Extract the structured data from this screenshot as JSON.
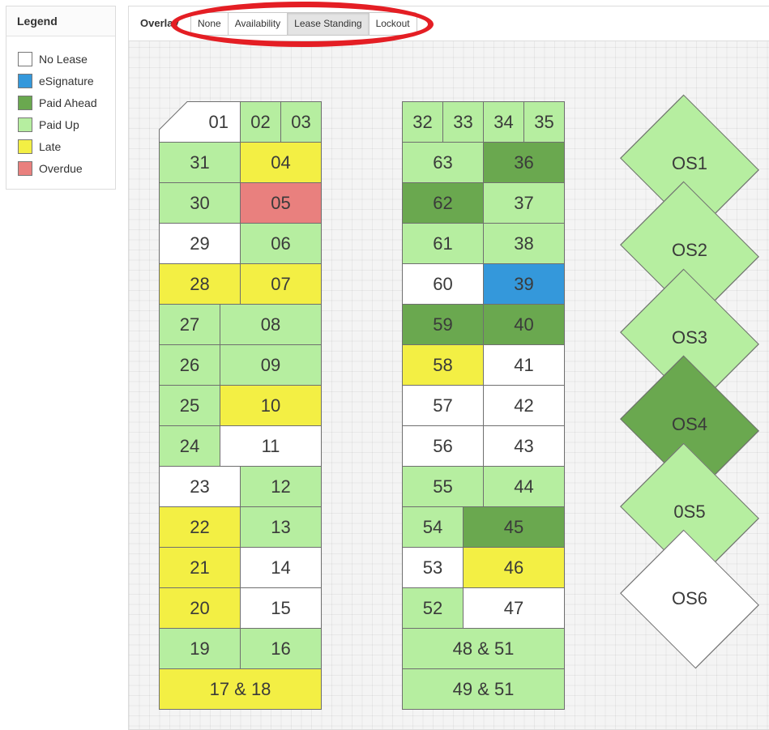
{
  "legend": {
    "title": "Legend",
    "items": [
      {
        "label": "No Lease",
        "color": "#ffffff"
      },
      {
        "label": "eSignature",
        "color": "#3498db"
      },
      {
        "label": "Paid Ahead",
        "color": "#6aa84f"
      },
      {
        "label": "Paid Up",
        "color": "#b6eea0"
      },
      {
        "label": "Late",
        "color": "#f3ef44"
      },
      {
        "label": "Overdue",
        "color": "#e9807e"
      }
    ]
  },
  "toolbar": {
    "overlay_label": "Overlay",
    "buttons": {
      "none": "None",
      "availability": "Availability",
      "lease_standing": "Lease Standing",
      "lockout": "Lockout"
    },
    "active": "Lease Standing"
  },
  "units": {
    "u01": {
      "label": "01",
      "status": "No Lease"
    },
    "u02": {
      "label": "02",
      "status": "Paid Up"
    },
    "u03": {
      "label": "03",
      "status": "Paid Up"
    },
    "u04": {
      "label": "04",
      "status": "Late"
    },
    "u05": {
      "label": "05",
      "status": "Overdue"
    },
    "u06": {
      "label": "06",
      "status": "Paid Up"
    },
    "u07": {
      "label": "07",
      "status": "Late"
    },
    "u08": {
      "label": "08",
      "status": "Paid Up"
    },
    "u09": {
      "label": "09",
      "status": "Paid Up"
    },
    "u10": {
      "label": "10",
      "status": "Late"
    },
    "u11": {
      "label": "11",
      "status": "No Lease"
    },
    "u12": {
      "label": "12",
      "status": "Paid Up"
    },
    "u13": {
      "label": "13",
      "status": "Paid Up"
    },
    "u14": {
      "label": "14",
      "status": "No Lease"
    },
    "u15": {
      "label": "15",
      "status": "No Lease"
    },
    "u16": {
      "label": "16",
      "status": "Paid Up"
    },
    "u1718": {
      "label": "17 & 18",
      "status": "Late"
    },
    "u19": {
      "label": "19",
      "status": "Paid Up"
    },
    "u20": {
      "label": "20",
      "status": "Late"
    },
    "u21": {
      "label": "21",
      "status": "Late"
    },
    "u22": {
      "label": "22",
      "status": "Late"
    },
    "u23": {
      "label": "23",
      "status": "No Lease"
    },
    "u24": {
      "label": "24",
      "status": "Paid Up"
    },
    "u25": {
      "label": "25",
      "status": "Paid Up"
    },
    "u26": {
      "label": "26",
      "status": "Paid Up"
    },
    "u27": {
      "label": "27",
      "status": "Paid Up"
    },
    "u28": {
      "label": "28",
      "status": "Late"
    },
    "u29": {
      "label": "29",
      "status": "No Lease"
    },
    "u30": {
      "label": "30",
      "status": "Paid Up"
    },
    "u31": {
      "label": "31",
      "status": "Paid Up"
    },
    "u32": {
      "label": "32",
      "status": "Paid Up"
    },
    "u33": {
      "label": "33",
      "status": "Paid Up"
    },
    "u34": {
      "label": "34",
      "status": "Paid Up"
    },
    "u35": {
      "label": "35",
      "status": "Paid Up"
    },
    "u36": {
      "label": "36",
      "status": "Paid Ahead"
    },
    "u37": {
      "label": "37",
      "status": "Paid Up"
    },
    "u38": {
      "label": "38",
      "status": "Paid Up"
    },
    "u39": {
      "label": "39",
      "status": "eSignature"
    },
    "u40": {
      "label": "40",
      "status": "Paid Ahead"
    },
    "u41": {
      "label": "41",
      "status": "No Lease"
    },
    "u42": {
      "label": "42",
      "status": "No Lease"
    },
    "u43": {
      "label": "43",
      "status": "No Lease"
    },
    "u44": {
      "label": "44",
      "status": "Paid Up"
    },
    "u45": {
      "label": "45",
      "status": "Paid Ahead"
    },
    "u46": {
      "label": "46",
      "status": "Late"
    },
    "u47": {
      "label": "47",
      "status": "No Lease"
    },
    "u4851": {
      "label": "48 & 51",
      "status": "Paid Up"
    },
    "u4951": {
      "label": "49 & 51",
      "status": "Paid Up"
    },
    "u52": {
      "label": "52",
      "status": "Paid Up"
    },
    "u53": {
      "label": "53",
      "status": "No Lease"
    },
    "u54": {
      "label": "54",
      "status": "Paid Up"
    },
    "u55": {
      "label": "55",
      "status": "Paid Up"
    },
    "u56": {
      "label": "56",
      "status": "No Lease"
    },
    "u57": {
      "label": "57",
      "status": "No Lease"
    },
    "u58": {
      "label": "58",
      "status": "Late"
    },
    "u59": {
      "label": "59",
      "status": "Paid Ahead"
    },
    "u60": {
      "label": "60",
      "status": "No Lease"
    },
    "u61": {
      "label": "61",
      "status": "Paid Up"
    },
    "u62": {
      "label": "62",
      "status": "Paid Ahead"
    },
    "u63": {
      "label": "63",
      "status": "Paid Up"
    },
    "os1": {
      "label": "OS1",
      "status": "Paid Up"
    },
    "os2": {
      "label": "OS2",
      "status": "Paid Up"
    },
    "os3": {
      "label": "OS3",
      "status": "Paid Up"
    },
    "os4": {
      "label": "OS4",
      "status": "Paid Ahead"
    },
    "os5": {
      "label": "0S5",
      "status": "Paid Up"
    },
    "os6": {
      "label": "OS6",
      "status": "No Lease"
    }
  }
}
